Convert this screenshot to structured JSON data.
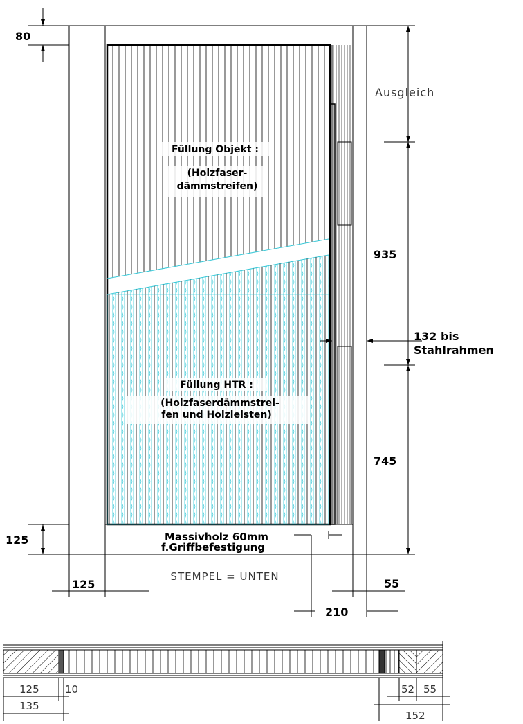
{
  "drawing": {
    "dimensions": {
      "top_frame": "80",
      "bottom_frame": "125",
      "left_frame": "125",
      "right_frame": "55",
      "upper_height": "935",
      "lower_height": "745",
      "offset_a": "132 bis",
      "offset_b": "Stahlrahmen",
      "handle_offset": "210"
    },
    "labels": {
      "ausgleich": "Ausgleich",
      "fill_object_title": "Füllung Objekt :",
      "fill_object_line1": "(Holzfaser-",
      "fill_object_line2": "dämmstreifen)",
      "fill_htr_title": "Füllung HTR :",
      "fill_htr_line1": "(Holzfaserdämmstrei-",
      "fill_htr_line2": "fen und Holzleisten)",
      "massivholz_line1": "Massivholz 60mm",
      "massivholz_line2": "f.Griffbefestigung",
      "stempel": "STEMPEL  =  UNTEN"
    },
    "section": {
      "dim_125": "125",
      "dim_10": "10",
      "dim_135": "135",
      "dim_52": "52",
      "dim_55": "55",
      "dim_152": "152"
    },
    "colors": {
      "line": "#000000",
      "hatch_cyan": "#39c9d8"
    }
  }
}
